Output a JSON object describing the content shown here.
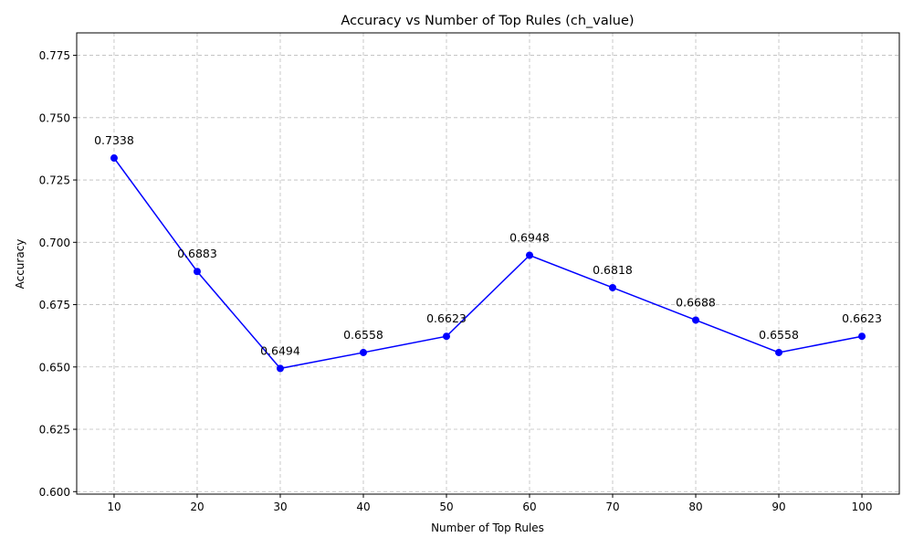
{
  "chart_data": {
    "type": "line",
    "title": "Accuracy vs Number of Top Rules (ch_value)",
    "xlabel": "Number of Top Rules",
    "ylabel": "Accuracy",
    "x": [
      10,
      20,
      30,
      40,
      50,
      60,
      70,
      80,
      90,
      100
    ],
    "y": [
      0.7338,
      0.6883,
      0.6494,
      0.6558,
      0.6623,
      0.6948,
      0.6818,
      0.6688,
      0.6558,
      0.6623
    ],
    "point_labels": [
      "0.7338",
      "0.6883",
      "0.6494",
      "0.6558",
      "0.6623",
      "0.6948",
      "0.6818",
      "0.6688",
      "0.6558",
      "0.6623"
    ],
    "xticks": [
      10,
      20,
      30,
      40,
      50,
      60,
      70,
      80,
      90,
      100
    ],
    "yticks": [
      0.6,
      0.625,
      0.65,
      0.675,
      0.7,
      0.725,
      0.75,
      0.775
    ],
    "ytick_labels": [
      "0.600",
      "0.625",
      "0.650",
      "0.675",
      "0.700",
      "0.725",
      "0.750",
      "0.775"
    ],
    "xlim": [
      5.5,
      104.5
    ],
    "ylim": [
      0.599,
      0.784
    ],
    "grid": true,
    "line_color": "#0000ff",
    "marker": "circle"
  }
}
